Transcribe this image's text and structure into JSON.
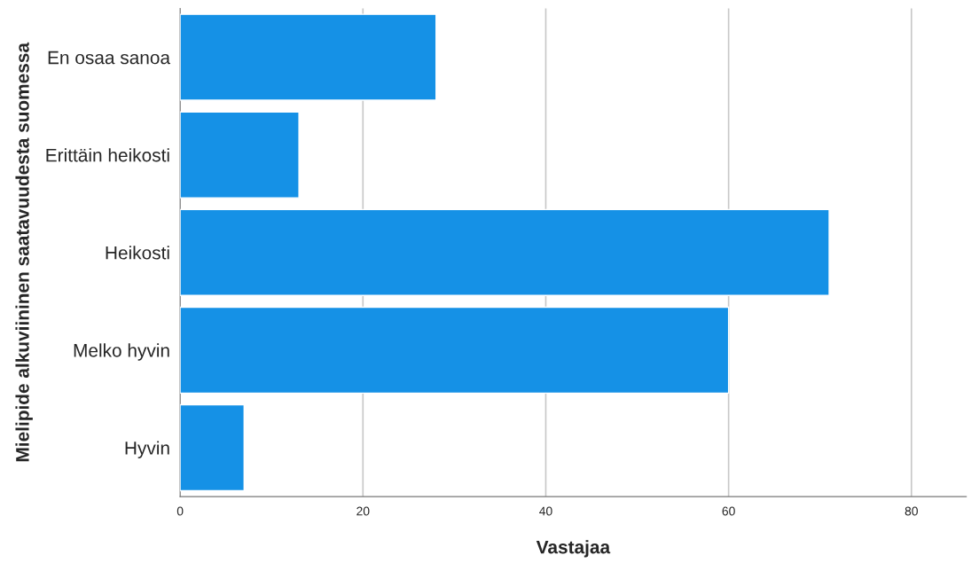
{
  "chart_data": {
    "type": "bar",
    "orientation": "horizontal",
    "categories": [
      "En osaa sanoa",
      "Erittäin heikosti",
      "Heikosti",
      "Melko hyvin",
      "Hyvin"
    ],
    "values": [
      28,
      13,
      71,
      60,
      7
    ],
    "color": "#1591e6",
    "xlabel": "Vastajaa",
    "ylabel": "Mielipide alkuviininen saatavuudesta suomessa",
    "xlim": [
      0,
      86
    ],
    "xticks": [
      0,
      20,
      40,
      60,
      80
    ],
    "grid": "x"
  }
}
